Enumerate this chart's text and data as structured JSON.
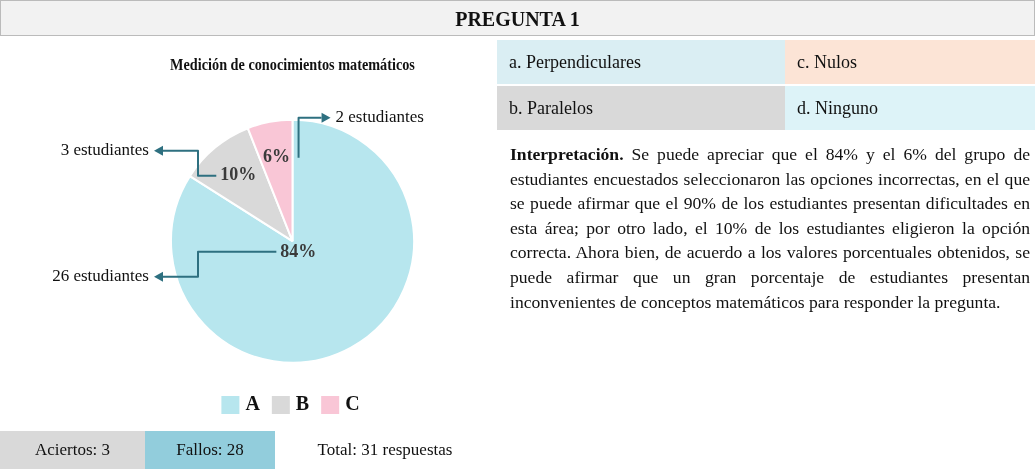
{
  "chart_data": {
    "type": "pie",
    "title": "Medición de conocimientos matemáticos",
    "categories": [
      "A",
      "B",
      "C"
    ],
    "values": [
      84,
      10,
      6
    ],
    "colors": [
      "#b7e6ee",
      "#d9d9d9",
      "#f9c6d6"
    ],
    "value_labels": [
      "84%",
      "10%",
      "6%"
    ],
    "legend": "bottom",
    "annotations": [
      {
        "text": "26 estudiantes",
        "x": "A"
      },
      {
        "text": "3 estudiantes",
        "x": "B"
      },
      {
        "text": "2 estudiantes",
        "x": "C"
      },
      "PREGUNTA 1",
      "a. Perpendiculares",
      "b. Paralelos",
      "c. Nulos",
      "d. Ninguno",
      "Interpretación.",
      "Se puede apreciar que el 84% y el 6% del grupo de estudiantes encuestados seleccionaron las opciones incorrectas, en el que se puede afirmar que el 90% de los estudiantes presentan dificultades en esta área; por otro lado, el 10% de los estudiantes eligieron la opción correcta. Ahora bien, de acuerdo a los valores porcentuales obtenidos, se puede afirmar que un gran porcentaje de estudiantes presentan inconvenientes de conceptos matemáticos para responder la pregunta.",
      "Aciertos: 3",
      "Fallos: 28",
      "Total: 31 respuestas"
    ]
  }
}
